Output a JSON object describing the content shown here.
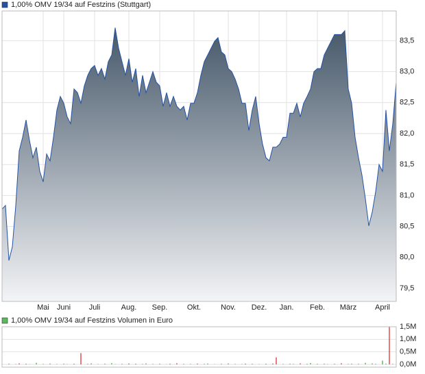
{
  "chart_data": [
    {
      "type": "area",
      "series": [
        {
          "name": "1,00% OMV 19/34 auf Festzins (Stuttgart)",
          "color": "#2452a4",
          "values": [
            80.78,
            80.84,
            79.95,
            80.17,
            80.84,
            81.72,
            81.94,
            82.22,
            81.89,
            81.61,
            81.78,
            81.39,
            81.22,
            81.67,
            81.56,
            81.94,
            82.38,
            82.6,
            82.49,
            82.27,
            82.16,
            82.72,
            82.66,
            82.49,
            82.77,
            82.94,
            83.05,
            83.1,
            82.94,
            83.05,
            82.88,
            83.16,
            83.27,
            83.71,
            83.38,
            83.16,
            82.94,
            83.21,
            82.83,
            83.05,
            82.6,
            82.94,
            82.66,
            82.83,
            83.0,
            82.83,
            82.77,
            82.44,
            82.66,
            82.44,
            82.6,
            82.44,
            82.38,
            82.44,
            82.22,
            82.49,
            82.49,
            82.66,
            82.94,
            83.16,
            83.27,
            83.38,
            83.49,
            83.55,
            83.32,
            83.27,
            83.05,
            83.0,
            82.88,
            82.72,
            82.49,
            82.49,
            82.05,
            82.38,
            82.6,
            82.16,
            81.83,
            81.61,
            81.56,
            81.78,
            81.78,
            81.83,
            81.94,
            81.94,
            82.33,
            82.33,
            82.49,
            82.27,
            82.49,
            82.6,
            82.72,
            83.0,
            83.05,
            83.05,
            83.27,
            83.38,
            83.49,
            83.6,
            83.6,
            83.6,
            83.66,
            82.72,
            82.49,
            81.94,
            81.61,
            81.33,
            80.95,
            80.51,
            80.73,
            81.06,
            81.5,
            81.39,
            82.38,
            81.72,
            82.16,
            82.83
          ]
        }
      ],
      "categories": [
        null,
        null,
        null,
        null,
        null,
        null,
        null,
        null,
        null,
        null,
        null,
        null,
        "Mai",
        null,
        null,
        null,
        null,
        null,
        "Juni",
        null,
        null,
        null,
        null,
        null,
        null,
        null,
        null,
        "Juli",
        null,
        null,
        null,
        null,
        null,
        null,
        null,
        null,
        null,
        "Aug.",
        null,
        null,
        null,
        null,
        null,
        null,
        null,
        null,
        "Sep.",
        null,
        null,
        null,
        null,
        null,
        null,
        null,
        null,
        null,
        "Okt.",
        null,
        null,
        null,
        null,
        null,
        null,
        null,
        null,
        null,
        "Nov.",
        null,
        null,
        null,
        null,
        null,
        null,
        null,
        null,
        "Dez.",
        null,
        null,
        null,
        null,
        null,
        null,
        null,
        "Jan.",
        null,
        null,
        null,
        null,
        null,
        null,
        null,
        null,
        "Feb.",
        null,
        null,
        null,
        null,
        null,
        null,
        null,
        null,
        "März",
        null,
        null,
        null,
        null,
        null,
        null,
        null,
        null,
        null,
        "April",
        null,
        null,
        null,
        null
      ],
      "ylim": [
        79.29,
        83.98
      ],
      "yticks": [
        {
          "value": 79.5,
          "label": "79,5"
        },
        {
          "value": 80,
          "label": "80,0"
        },
        {
          "value": 80.5,
          "label": "80,5"
        },
        {
          "value": 81,
          "label": "81,0"
        },
        {
          "value": 81.5,
          "label": "81,5"
        },
        {
          "value": 82,
          "label": "82,0"
        },
        {
          "value": 82.5,
          "label": "82,5"
        },
        {
          "value": 83,
          "label": "83,0"
        },
        {
          "value": 83.5,
          "label": "83,5"
        }
      ],
      "grid": true
    },
    {
      "type": "bar",
      "series": [
        {
          "name": "1,00% OMV 19/34 auf Festzins Volumen in Euro",
          "color": "#5cb85c",
          "values": [
            20000,
            0,
            30000,
            0,
            15000,
            40000,
            0,
            25000,
            10000,
            0,
            60000,
            0,
            20000,
            0,
            35000,
            0,
            15000,
            0,
            30000,
            10000,
            0,
            25000,
            0,
            450000,
            0,
            20000,
            40000,
            0,
            15000,
            0,
            30000,
            0,
            50000,
            10000,
            0,
            20000,
            0,
            35000,
            0,
            25000,
            0,
            15000,
            40000,
            0,
            20000,
            0,
            30000,
            0,
            10000,
            25000,
            0,
            45000,
            0,
            20000,
            0,
            15000,
            0,
            30000,
            0,
            20000,
            35000,
            0,
            10000,
            0,
            25000,
            0,
            40000,
            0,
            20000,
            0,
            15000,
            30000,
            0,
            20000,
            0,
            10000,
            0,
            25000,
            0,
            35000,
            280000,
            0,
            20000,
            0,
            30000,
            15000,
            0,
            40000,
            0,
            20000,
            55000,
            0,
            25000,
            0,
            30000,
            10000,
            0,
            20000,
            0,
            45000,
            0,
            15000,
            30000,
            0,
            25000,
            0,
            60000,
            0,
            40000,
            20000,
            0,
            150000,
            30000,
            1500000,
            20000,
            0
          ],
          "colors": [
            "#3a3",
            "#d22",
            "#3a3",
            "#d22",
            "#3a3",
            "#d22",
            "#3a3",
            "#d22",
            "#3a3",
            "#d22",
            "#3a3",
            "#d22",
            "#3a3",
            "#d22",
            "#3a3",
            "#d22",
            "#3a3",
            "#d22",
            "#3a3",
            "#d22",
            "#3a3",
            "#d22",
            "#3a3",
            "#d22",
            "#3a3",
            "#d22",
            "#3a3",
            "#d22",
            "#3a3",
            "#d22",
            "#3a3",
            "#d22",
            "#3a3",
            "#d22",
            "#3a3",
            "#d22",
            "#3a3",
            "#d22",
            "#3a3",
            "#d22",
            "#3a3",
            "#d22",
            "#3a3",
            "#d22",
            "#3a3",
            "#d22",
            "#3a3",
            "#d22",
            "#3a3",
            "#d22",
            "#3a3",
            "#d22",
            "#3a3",
            "#d22",
            "#3a3",
            "#d22",
            "#3a3",
            "#d22",
            "#3a3",
            "#d22",
            "#3a3",
            "#d22",
            "#3a3",
            "#d22",
            "#3a3",
            "#d22",
            "#3a3",
            "#d22",
            "#3a3",
            "#d22",
            "#3a3",
            "#d22",
            "#3a3",
            "#d22",
            "#3a3",
            "#d22",
            "#3a3",
            "#d22",
            "#3a3",
            "#d22",
            "#d22",
            "#d22",
            "#3a3",
            "#d22",
            "#3a3",
            "#d22",
            "#3a3",
            "#d22",
            "#3a3",
            "#d22",
            "#3a3",
            "#d22",
            "#3a3",
            "#d22",
            "#3a3",
            "#d22",
            "#3a3",
            "#d22",
            "#3a3",
            "#d22",
            "#3a3",
            "#d22",
            "#3a3",
            "#d22",
            "#3a3",
            "#d22",
            "#3a3",
            "#d22",
            "#3a3",
            "#d22",
            "#3a3",
            "#3a3",
            "#3a3",
            "#d22",
            "#3a3",
            "#d22"
          ]
        }
      ],
      "ylim": [
        -110000,
        1500000
      ],
      "yticks": [
        {
          "value": 0,
          "label": "0,0M"
        },
        {
          "value": 500000,
          "label": "0,5M"
        },
        {
          "value": 1000000,
          "label": "1,0M"
        },
        {
          "value": 1500000,
          "label": "1,5M"
        }
      ],
      "grid": true
    }
  ]
}
